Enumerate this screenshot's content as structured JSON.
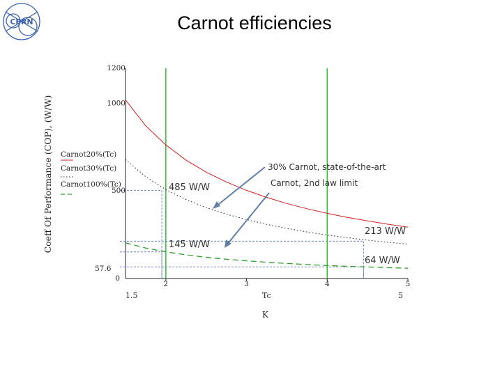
{
  "slide": {
    "title": "Carnot efficiencies",
    "logo_text": "CERN"
  },
  "chart_data": {
    "type": "line",
    "title": "",
    "xlabel": "Tc",
    "xunit": "K",
    "ylabel": "Coeff Of Performance (COP), (W/W)",
    "xlim": [
      1.5,
      5
    ],
    "ylim": [
      0,
      1200
    ],
    "x_ticks": [
      {
        "value": 2,
        "label": "2"
      },
      {
        "value": 3,
        "label": "3"
      },
      {
        "value": 4,
        "label": "4"
      },
      {
        "value": 5,
        "label": "5"
      }
    ],
    "x_range_labels": {
      "min": "1.5",
      "max": "5"
    },
    "y_ticks": [
      {
        "value": 0,
        "label": "0"
      },
      {
        "value": 500,
        "label": "500"
      },
      {
        "value": 1000,
        "label": "1000"
      },
      {
        "value": 1200,
        "label": "1200"
      }
    ],
    "y_marker": {
      "value": 57.6,
      "label": "57.6"
    },
    "legend_position": "left",
    "series": [
      {
        "name": "Carnot20%(Tc)",
        "style": "solid",
        "color": "#d02020",
        "x": [
          1.5,
          1.75,
          2,
          2.25,
          2.5,
          2.75,
          3,
          3.25,
          3.5,
          3.75,
          4,
          4.25,
          4.5,
          4.75,
          5
        ],
        "y": [
          1019,
          872,
          762,
          676,
          607,
          551,
          503,
          463,
          428,
          398,
          372,
          349,
          329,
          310,
          293
        ]
      },
      {
        "name": "Carnot30%(Tc)",
        "style": "dotted",
        "color": "#202020",
        "x": [
          1.5,
          1.75,
          2,
          2.25,
          2.5,
          2.75,
          3,
          3.25,
          3.5,
          3.75,
          4,
          4.25,
          4.5,
          4.75,
          5
        ],
        "y": [
          679,
          581,
          508,
          451,
          405,
          367,
          336,
          309,
          286,
          266,
          248,
          233,
          219,
          207,
          196
        ]
      },
      {
        "name": "Carnot100%(Tc)",
        "style": "dashed",
        "color": "#30a030",
        "x": [
          1.5,
          1.75,
          2,
          2.25,
          2.5,
          2.75,
          3,
          3.25,
          3.5,
          3.75,
          4,
          4.25,
          4.5,
          4.75,
          5
        ],
        "y": [
          204,
          174,
          152,
          135,
          121,
          110,
          101,
          93,
          86,
          80,
          74,
          70,
          66,
          62,
          59
        ]
      }
    ],
    "vertical_markers": [
      {
        "x": 2,
        "color": "#33bb33"
      },
      {
        "x": 4,
        "color": "#33bb33"
      }
    ],
    "reference_lines": [
      {
        "x": 1.95,
        "y": 503
      },
      {
        "x": 1.95,
        "y": 152
      },
      {
        "x": 4.45,
        "y": 213
      },
      {
        "x": 4.45,
        "y": 66
      }
    ],
    "annotations": {
      "top_left": "30% Carnot, state-of-the-art",
      "top_right": "Carnot, 2nd law limit",
      "v485": "485 W/W",
      "v145": "145 W/W",
      "v213": "213 W/W",
      "v64": "64 W/W"
    }
  }
}
